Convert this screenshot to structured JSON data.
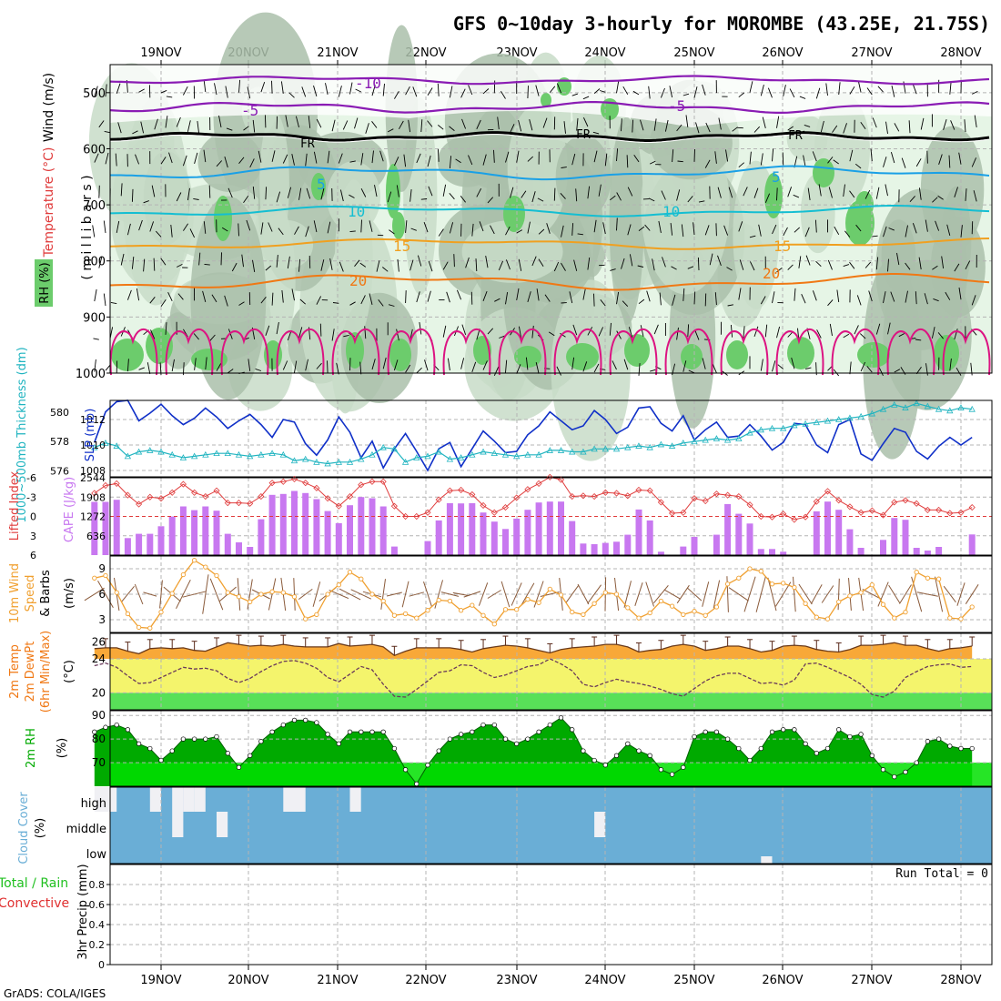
{
  "title": "GFS 0~10day 3-hourly for MOROMBE (43.25E, 21.75S)",
  "footer": "GrADS: COLA/IGES",
  "dates": [
    "19NOV",
    "20NOV",
    "21NOV",
    "22NOV",
    "23NOV",
    "24NOV",
    "25NOV",
    "26NOV",
    "27NOV",
    "28NOV"
  ],
  "colors": {
    "frame": "#000000",
    "grid": "#b4b4b4",
    "rh_light": "#e6f5e6",
    "rh_mid": "#c8dcc8",
    "rh_dark": "#aac0aa",
    "rh_green": "#6ccc6c",
    "temp_purple": "#8a1cb4",
    "temp_black": "#000000",
    "temp_blue": "#1aa0e6",
    "temp_cyan": "#14bed2",
    "temp_orange": "#f0a020",
    "temp_darkorange": "#f07814",
    "rh_magenta": "#dc1482",
    "slp": "#1030c8",
    "thickness": "#20b4c0",
    "cape_bar": "#c878f0",
    "lifted": "#e03c3c",
    "wind10": "#f0a030",
    "barb10": "#8a5a3a",
    "temp_band": "#f8a838",
    "dew_band": "#f4f46c",
    "green_band": "#58e058",
    "rh2m_dark": "#00aa00",
    "rh2m_light": "#00e000",
    "cloud": "#6aaed6",
    "cloud_white": "#f0f0f4"
  },
  "panels": {
    "upper": {
      "ylabel_wind": "Wind (m/s)",
      "ylabel_temp": "Temperature (°C)",
      "ylabel_mb": "( m i l l i b a r s )",
      "ylabel_rh": "RH (%)",
      "y_ticks": [
        "500",
        "600",
        "700",
        "800",
        "900",
        "1000"
      ],
      "contour_labels": [
        "-10",
        "-5",
        "-5",
        "FR",
        "FR",
        "FR",
        "5",
        "5",
        "10",
        "10",
        "15",
        "15",
        "20",
        "20"
      ]
    },
    "slp": {
      "ylabel_thick": "1000~500mb Thickness (dm)",
      "ylabel_slp": "SLP (mb)",
      "thick_ticks": [
        "580",
        "578",
        "576"
      ],
      "slp_ticks": [
        "1012",
        "1010",
        "1008"
      ]
    },
    "cape": {
      "ylabel_li": "Lifted Index",
      "ylabel_cape": "CAPE (J/kg)",
      "li_ticks": [
        "-6",
        "-3",
        "0",
        "3",
        "6"
      ],
      "cape_ticks": [
        "2544",
        "1908",
        "1272",
        "636"
      ]
    },
    "wind10": {
      "ylabel1": "10m Wind",
      "ylabel2": "Speed",
      "ylabel3": "& Barbs",
      "ylabel_unit": "(m/s)",
      "ticks": [
        "9",
        "6",
        "3"
      ]
    },
    "t2m": {
      "ylabel1": "2m Temp",
      "ylabel2": "2m DewPt",
      "ylabel3": "(6hr Min/Max)",
      "ylabel_unit": "(°C)",
      "ticks": [
        "26",
        "24",
        "20"
      ]
    },
    "rh2m": {
      "ylabel": "2m RH",
      "ylabel_unit": "(%)",
      "ticks": [
        "90",
        "80",
        "70"
      ]
    },
    "cloud": {
      "ylabel": "Cloud Cover",
      "ylabel_unit": "(%)",
      "levels": [
        "high",
        "middle",
        "low"
      ]
    },
    "precip": {
      "ylabel_total": "Total / Rain",
      "ylabel_conv": "Convective",
      "ylabel_unit": "3hr Precip (mm)",
      "ticks": [
        "0.8",
        "0.6",
        "0.4",
        "0.2",
        "0"
      ],
      "run_total": "Run Total = 0"
    }
  },
  "chart_data": [
    {
      "type": "line",
      "name": "SLP",
      "unit": "mb",
      "ylim": [
        1007.5,
        1013.5
      ],
      "x_steps": 80,
      "values": [
        1010.2,
        1012.6,
        1013.4,
        1013.5,
        1011.9,
        1012.5,
        1013.2,
        1012.3,
        1011.6,
        1012.1,
        1012.9,
        1012.2,
        1011.3,
        1011.9,
        1012.4,
        1011.6,
        1010.6,
        1012.0,
        1011.8,
        1010.1,
        1009.2,
        1010.4,
        1012.2,
        1011.0,
        1009.0,
        1010.3,
        1008.2,
        1009.7,
        1010.9,
        1009.5,
        1008.0,
        1009.7,
        1010.2,
        1008.3,
        1009.7,
        1011.1,
        1010.3,
        1009.4,
        1009.5,
        1010.8,
        1011.5,
        1012.6,
        1011.9,
        1011.2,
        1011.5,
        1012.7,
        1012.0,
        1010.9,
        1011.4,
        1012.9,
        1013.0,
        1011.7,
        1011.1,
        1012.3,
        1010.4,
        1011.2,
        1011.8,
        1010.6,
        1010.7,
        1011.6,
        1010.7,
        1009.6,
        1010.2,
        1011.7,
        1011.6,
        1010.0,
        1009.4,
        1011.6,
        1012.0,
        1009.3,
        1008.8,
        1010.1,
        1011.3,
        1011.0,
        1009.5,
        1008.9,
        1009.9,
        1010.6,
        1010.0,
        1010.6
      ]
    },
    {
      "type": "line",
      "name": "1000~500mb Thickness",
      "unit": "dm",
      "ylim": [
        575.6,
        580.8
      ],
      "x_steps": 80,
      "values": [
        577.6,
        577.9,
        577.7,
        577.0,
        577.3,
        577.4,
        577.3,
        577.1,
        576.9,
        577.0,
        577.1,
        577.2,
        577.2,
        577.1,
        577.0,
        577.1,
        577.2,
        577.1,
        576.7,
        576.8,
        576.6,
        576.5,
        576.6,
        576.6,
        576.8,
        577.1,
        577.6,
        577.5,
        576.6,
        576.9,
        577.0,
        577.3,
        576.8,
        576.9,
        577.1,
        577.3,
        577.2,
        577.1,
        577.0,
        577.1,
        577.1,
        577.4,
        577.4,
        577.3,
        577.3,
        577.5,
        577.5,
        577.5,
        577.6,
        577.7,
        577.6,
        577.8,
        577.7,
        577.9,
        578.0,
        578.1,
        578.2,
        578.1,
        578.2,
        578.6,
        578.8,
        578.9,
        578.9,
        579.1,
        579.2,
        579.3,
        579.4,
        579.5,
        579.6,
        579.7,
        579.9,
        580.2,
        580.5,
        580.3,
        580.6,
        580.4,
        580.2,
        580.1,
        580.3,
        580.2
      ]
    },
    {
      "type": "bar",
      "name": "CAPE",
      "unit": "J/kg",
      "ylim": [
        0,
        2544
      ],
      "x_steps": 80,
      "values": [
        1750,
        1750,
        1820,
        560,
        700,
        700,
        950,
        1270,
        1600,
        1480,
        1600,
        1460,
        700,
        420,
        270,
        1180,
        1980,
        2010,
        2110,
        2040,
        1840,
        1450,
        1050,
        1640,
        1910,
        1870,
        1600,
        280,
        0,
        0,
        460,
        1140,
        1710,
        1700,
        1710,
        1400,
        1100,
        860,
        1200,
        1490,
        1730,
        1760,
        1760,
        1120,
        380,
        360,
        400,
        440,
        670,
        1500,
        1140,
        110,
        0,
        280,
        600,
        0,
        670,
        1680,
        1360,
        1040,
        200,
        200,
        110,
        0,
        0,
        1440,
        1760,
        1490,
        850,
        240,
        0,
        500,
        1220,
        1160,
        240,
        150,
        270,
        0,
        0,
        680
      ]
    },
    {
      "type": "line",
      "name": "Lifted Index",
      "ylim": [
        6,
        -6
      ],
      "x_steps": 80,
      "values": [
        -3.6,
        -4.8,
        -5.1,
        -3.3,
        -1.9,
        -3.0,
        -2.8,
        -3.7,
        -5.0,
        -3.7,
        -3.1,
        -4.0,
        -2.1,
        -2.1,
        -2.0,
        -3.1,
        -5.2,
        -5.4,
        -5.8,
        -5.2,
        -4.4,
        -2.8,
        -1.6,
        -3.1,
        -4.9,
        -5.4,
        -5.4,
        -1.6,
        0,
        0,
        -0.6,
        -2.6,
        -4.0,
        -4.1,
        -3.4,
        -1.7,
        -0.6,
        -1.4,
        -2.9,
        -4.2,
        -5.1,
        -6.1,
        -5.7,
        -3.1,
        -3.2,
        -3.1,
        -3.7,
        -3.6,
        -3.2,
        -4.1,
        -4.0,
        -2.2,
        -0.5,
        -0.6,
        -2.8,
        -2.4,
        -3.5,
        -3.3,
        -3.1,
        -1.8,
        0.0,
        0.1,
        -0.4,
        0.5,
        0.1,
        -2.3,
        -3.9,
        -2.5,
        -1.5,
        -0.6,
        -0.9,
        -0.2,
        -2.2,
        -2.5,
        -2.0,
        -1.0,
        -1.0,
        -0.5,
        -0.6,
        -1.4
      ]
    },
    {
      "type": "line",
      "name": "10m Wind Speed",
      "unit": "m/s",
      "ylim": [
        1.5,
        10.5
      ],
      "x_steps": 80,
      "values": [
        7.9,
        8.2,
        6.2,
        3.7,
        2.1,
        2.0,
        3.9,
        6.1,
        8.3,
        10.0,
        9.2,
        8.2,
        6.2,
        5.7,
        5.1,
        6.0,
        6.3,
        6.2,
        5.7,
        3.1,
        3.6,
        6.0,
        7.1,
        8.6,
        7.8,
        6.0,
        5.2,
        3.5,
        3.7,
        3.2,
        4.1,
        5.3,
        5.2,
        4.1,
        4.7,
        3.5,
        2.5,
        4.2,
        4.2,
        5.4,
        5.0,
        6.6,
        5.9,
        3.9,
        3.6,
        4.9,
        6.2,
        6.0,
        4.4,
        3.2,
        3.8,
        5.2,
        4.6,
        3.6,
        4.0,
        3.5,
        4.5,
        7.2,
        7.9,
        9.0,
        8.7,
        7.2,
        7.3,
        6.8,
        4.9,
        3.3,
        3.1,
        5.1,
        5.8,
        6.2,
        7.1,
        4.8,
        3.2,
        3.9,
        8.6,
        7.9,
        7.8,
        3.2,
        3.1,
        4.5
      ]
    },
    {
      "type": "area",
      "name": "2m Temp",
      "unit": "°C",
      "ylim": [
        18,
        27
      ],
      "x_steps": 80,
      "values": [
        25.2,
        25.3,
        25.3,
        24.9,
        24.6,
        25.2,
        25.3,
        25.2,
        25.3,
        25.0,
        24.9,
        25.4,
        25.9,
        25.7,
        25.5,
        25.6,
        25.5,
        25.7,
        25.5,
        25.4,
        25.4,
        25.4,
        25.8,
        25.5,
        25.6,
        25.7,
        25.4,
        24.4,
        24.9,
        25.3,
        25.3,
        25.3,
        25.3,
        25.1,
        24.8,
        25.2,
        25.4,
        25.6,
        25.5,
        25.3,
        25.0,
        24.7,
        25.1,
        25.3,
        25.4,
        25.5,
        25.7,
        25.7,
        25.4,
        24.8,
        25.0,
        25.1,
        25.5,
        25.7,
        25.5,
        25.0,
        25.2,
        25.5,
        25.5,
        25.2,
        24.8,
        25.0,
        25.5,
        25.6,
        25.5,
        25.1,
        24.9,
        24.8,
        25.1,
        25.6,
        25.6,
        25.7,
        25.9,
        25.6,
        25.6,
        25.2,
        24.9,
        25.2,
        25.3,
        25.5
      ]
    },
    {
      "type": "line",
      "name": "2m DewPt",
      "unit": "°C",
      "ylim": [
        18,
        27
      ],
      "x_steps": 80,
      "values": [
        23.2,
        23.5,
        23.0,
        22.0,
        21.1,
        21.2,
        21.8,
        22.4,
        23.0,
        22.8,
        22.9,
        22.6,
        21.7,
        21.2,
        21.7,
        22.5,
        23.2,
        23.7,
        23.8,
        23.5,
        22.9,
        21.8,
        21.3,
        22.2,
        23.1,
        22.7,
        21.0,
        19.6,
        19.5,
        20.4,
        21.4,
        22.4,
        22.6,
        23.3,
        23.2,
        22.4,
        21.8,
        22.1,
        22.6,
        23.1,
        23.3,
        24.0,
        23.4,
        22.6,
        21.0,
        20.7,
        21.2,
        21.6,
        21.3,
        21.1,
        20.8,
        20.4,
        19.9,
        19.6,
        20.5,
        21.4,
        22.0,
        22.3,
        22.3,
        21.7,
        21.1,
        21.2,
        20.9,
        21.5,
        23.4,
        23.5,
        23.0,
        22.4,
        21.8,
        21.0,
        19.8,
        19.5,
        20.2,
        21.8,
        22.5,
        23.1,
        23.3,
        23.4,
        23.0,
        23.1
      ]
    },
    {
      "type": "area",
      "name": "2m RH",
      "unit": "%",
      "ylim": [
        60,
        92
      ],
      "x_steps": 80,
      "values": [
        83,
        85,
        86,
        84,
        78,
        76,
        71,
        75,
        80,
        80,
        80,
        81,
        74,
        68,
        73,
        79,
        83,
        86,
        88,
        88,
        87,
        82,
        78,
        83,
        83,
        83,
        83,
        76,
        67,
        61,
        69,
        75,
        80,
        82,
        83,
        86,
        86,
        80,
        78,
        80,
        83,
        86,
        89,
        84,
        75,
        71,
        69,
        73,
        78,
        75,
        73,
        67,
        65,
        68,
        81,
        83,
        83,
        80,
        76,
        71,
        76,
        83,
        84,
        84,
        78,
        74,
        76,
        84,
        81,
        82,
        73,
        67,
        64,
        66,
        70,
        79,
        80,
        77,
        76,
        76
      ]
    },
    {
      "type": "heatmap",
      "name": "Cloud Cover",
      "levels": [
        "high",
        "middle",
        "low"
      ],
      "white_high": [
        [
          0,
          2
        ],
        [
          5,
          6
        ],
        [
          7,
          8
        ],
        [
          8,
          9
        ],
        [
          9,
          10
        ],
        [
          17,
          18
        ],
        [
          18,
          19
        ],
        [
          23,
          24
        ]
      ],
      "white_mid": [
        [
          7,
          8
        ],
        [
          11,
          12
        ],
        [
          45,
          46
        ]
      ],
      "white_low": [
        [
          60,
          61
        ]
      ]
    },
    {
      "type": "bar",
      "name": "3hr Precip",
      "unit": "mm",
      "ylim": [
        0,
        1
      ],
      "values": []
    }
  ]
}
